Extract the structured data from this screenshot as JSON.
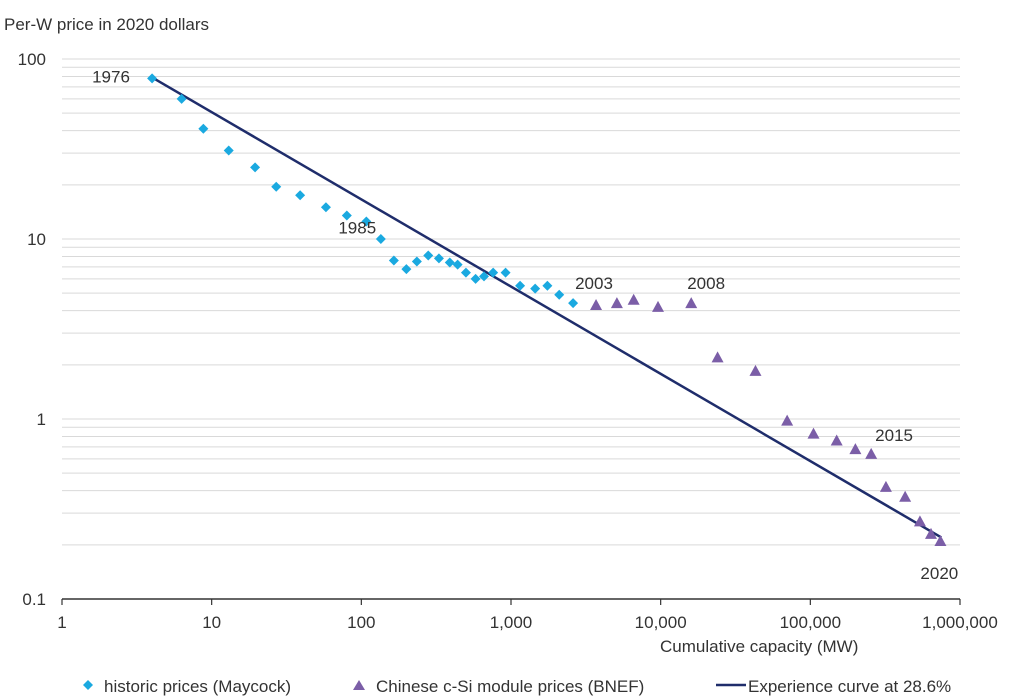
{
  "chart_data": {
    "type": "scatter",
    "ylabel": "Per-W price in 2020 dollars",
    "xlabel": "Cumulative capacity (MW)",
    "x_scale": "log",
    "y_scale": "log",
    "xlim": [
      1,
      1000000
    ],
    "ylim": [
      0.1,
      100
    ],
    "x_ticks": [
      1,
      10,
      100,
      1000,
      10000,
      100000,
      1000000
    ],
    "x_tick_labels": [
      "1",
      "10",
      "100",
      "1,000",
      "10,000",
      "100,000",
      "1,000,000"
    ],
    "y_ticks": [
      0.1,
      1,
      10,
      100
    ],
    "y_tick_labels": [
      "0.1",
      "1",
      "10",
      "100"
    ],
    "grid": "horizontal",
    "legend_placement": "bottom",
    "series": [
      {
        "name": "historic prices (Maycock)",
        "marker": "diamond",
        "color": "#1aa9e0",
        "x": [
          4,
          6.3,
          8.8,
          13,
          19.5,
          27,
          39,
          58,
          80,
          108,
          135,
          165,
          200,
          235,
          280,
          330,
          390,
          440,
          500,
          580,
          660,
          760,
          920,
          1150,
          1450,
          1750,
          2100,
          2600
        ],
        "y": [
          78,
          60,
          41,
          31,
          25,
          19.5,
          17.5,
          15,
          13.5,
          12.5,
          10,
          7.6,
          6.8,
          7.5,
          8.1,
          7.8,
          7.4,
          7.2,
          6.5,
          6,
          6.2,
          6.5,
          6.5,
          5.5,
          5.3,
          5.5,
          4.9,
          4.4
        ]
      },
      {
        "name": "Chinese c-Si module prices (BNEF)",
        "marker": "triangle",
        "color": "#7b5ea7",
        "x": [
          3700,
          5100,
          6600,
          9600,
          16000,
          24000,
          43000,
          70000,
          105000,
          150000,
          200000,
          255000,
          320000,
          430000,
          540000,
          640000,
          740000
        ],
        "y": [
          4.3,
          4.4,
          4.6,
          4.2,
          4.4,
          2.2,
          1.85,
          0.98,
          0.83,
          0.76,
          0.68,
          0.64,
          0.42,
          0.37,
          0.27,
          0.23,
          0.21
        ]
      },
      {
        "name": "Experience curve at 28.6%",
        "type": "line",
        "color": "#1f2d6b",
        "x": [
          4,
          750000
        ],
        "y": [
          79,
          0.22
        ]
      }
    ],
    "annotations": [
      {
        "text": "1976",
        "x": 4,
        "y": 78
      },
      {
        "text": "1985",
        "x": 108,
        "y": 12.5
      },
      {
        "text": "2003",
        "x": 2600,
        "y": 4.4
      },
      {
        "text": "2008",
        "x": 16000,
        "y": 4.4
      },
      {
        "text": "2015",
        "x": 255000,
        "y": 0.64
      },
      {
        "text": "2020",
        "x": 740000,
        "y": 0.21
      }
    ]
  }
}
